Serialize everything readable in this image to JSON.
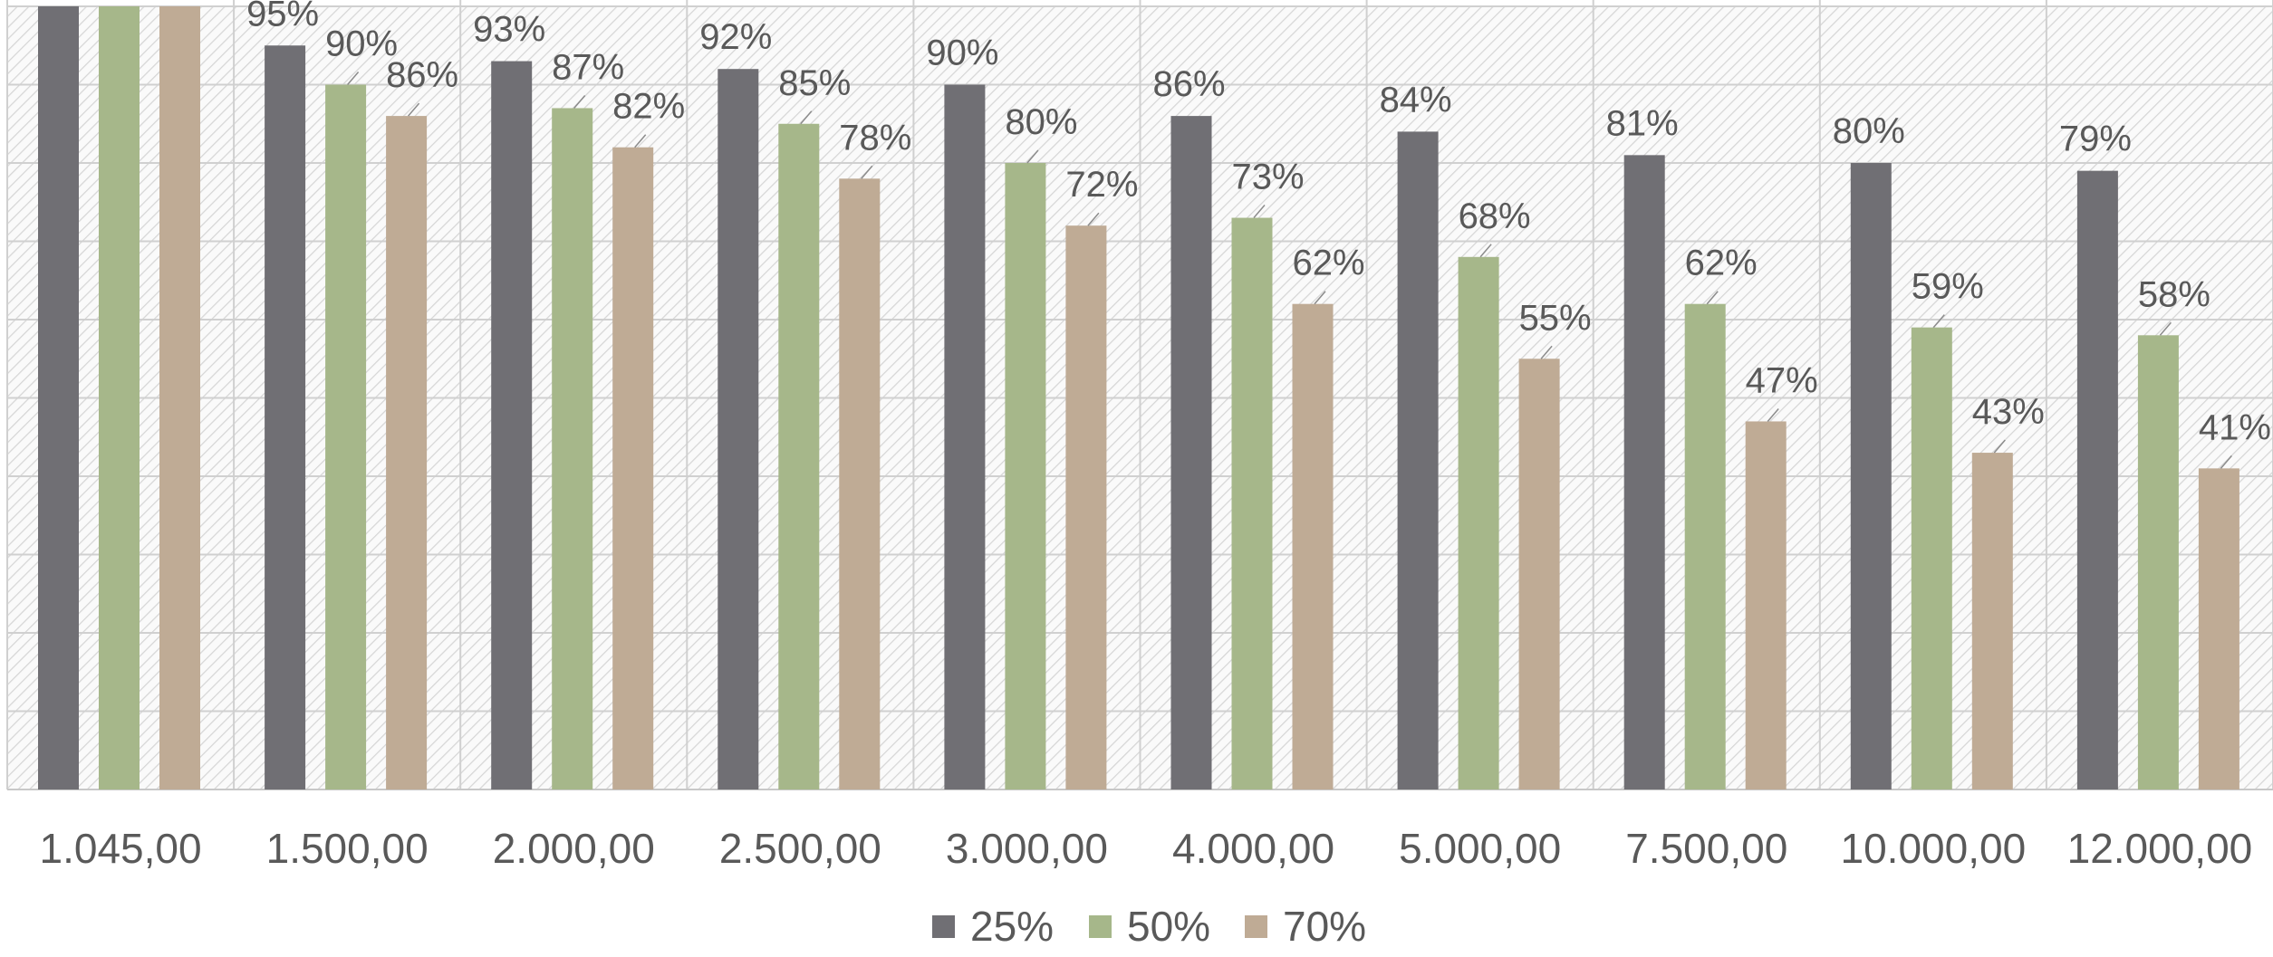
{
  "chart_data": {
    "type": "bar",
    "categories": [
      "1.045,00",
      "1.500,00",
      "2.000,00",
      "2.500,00",
      "3.000,00",
      "4.000,00",
      "5.000,00",
      "7.500,00",
      "10.000,00",
      "12.000,00"
    ],
    "series": [
      {
        "name": "25%",
        "color": "#706f74",
        "values": [
          100,
          95,
          93,
          92,
          90,
          86,
          84,
          81,
          80,
          79
        ],
        "labels": [
          "",
          "95%",
          "93%",
          "92%",
          "90%",
          "86%",
          "84%",
          "81%",
          "80%",
          "79%"
        ]
      },
      {
        "name": "50%",
        "color": "#a6b78a",
        "values": [
          100,
          90,
          87,
          85,
          80,
          73,
          68,
          62,
          59,
          58
        ],
        "labels": [
          "",
          "90%",
          "87%",
          "85%",
          "80%",
          "73%",
          "68%",
          "62%",
          "59%",
          "58%"
        ]
      },
      {
        "name": "70%",
        "color": "#bfab95",
        "values": [
          100,
          86,
          82,
          78,
          72,
          62,
          55,
          47,
          43,
          41
        ],
        "labels": [
          "",
          "86%",
          "82%",
          "78%",
          "72%",
          "62%",
          "55%",
          "47%",
          "43%",
          "41%"
        ]
      }
    ],
    "title": "",
    "xlabel": "",
    "ylabel": "",
    "ylim": [
      0,
      100
    ],
    "grid": true,
    "legend": "bottom",
    "data_label_unit": "%"
  }
}
